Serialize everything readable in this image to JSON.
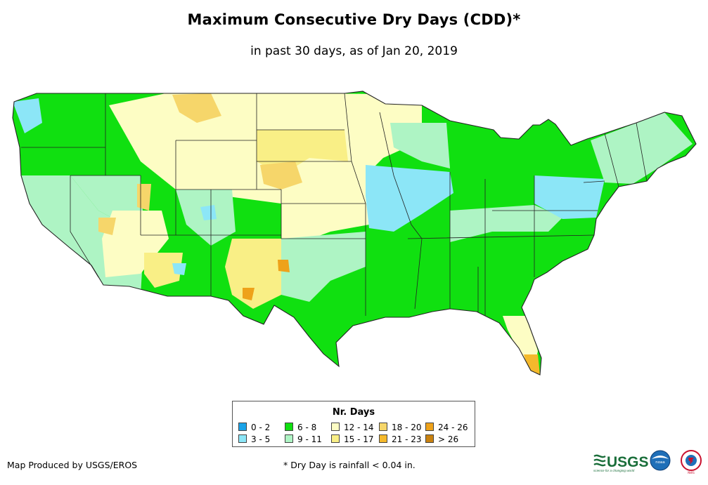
{
  "header": {
    "title": "Maximum Consecutive Dry Days (CDD)*",
    "subtitle": "in past 30 days, as of Jan 20, 2019"
  },
  "legend": {
    "title": "Nr. Days",
    "items": [
      {
        "label": "0 - 2",
        "color": "#1aa3e8"
      },
      {
        "label": "3 - 5",
        "color": "#8ce6f7"
      },
      {
        "label": "6 - 8",
        "color": "#10e010"
      },
      {
        "label": "9 - 11",
        "color": "#aef4c4"
      },
      {
        "label": "12 - 14",
        "color": "#fdfdc4"
      },
      {
        "label": "15 - 17",
        "color": "#f9ef86"
      },
      {
        "label": "18 - 20",
        "color": "#f6d66a"
      },
      {
        "label": "21 - 23",
        "color": "#f5b92c"
      },
      {
        "label": "24 - 26",
        "color": "#eea21a"
      },
      {
        "label": "> 26",
        "color": "#c98210"
      }
    ]
  },
  "footer": {
    "credit": "Map Produced by USGS/EROS",
    "footnote": "* Dry Day is rainfall < 0.04 in.",
    "logos": {
      "usgs": "USGS",
      "usgs_tagline": "science for a changing world",
      "noaa": "noaa",
      "nws": "NWS"
    }
  }
}
